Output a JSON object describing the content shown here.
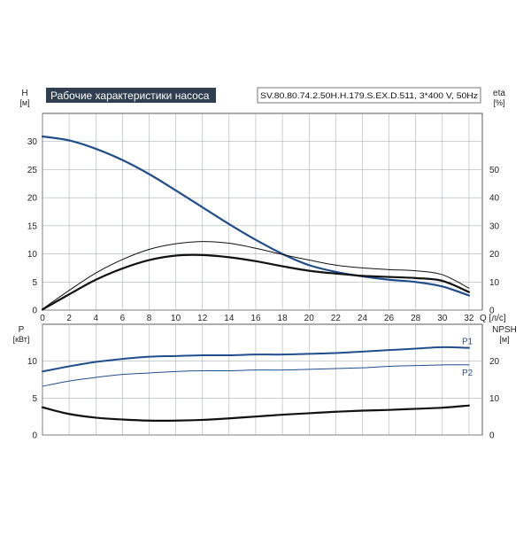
{
  "title": "Рабочие характеристики насоса",
  "model": "SV.80.80.74.2.50H.H.179.S.EX.D.511, 3*400 V, 50Hz",
  "colors": {
    "blue": "#1f4e8c",
    "black": "#111111",
    "grid": "#9aa0a6",
    "title_bg": "#2f3f50"
  },
  "chart_data": [
    {
      "type": "line",
      "x_label": "Q [л/с]",
      "y_label": "H [м]",
      "y2_label": "eta [%]",
      "xlim": [
        0,
        33
      ],
      "ylim": [
        0,
        35
      ],
      "y2lim": [
        0,
        70
      ],
      "x_ticks": [
        0,
        2,
        4,
        6,
        8,
        10,
        12,
        14,
        16,
        18,
        20,
        22,
        24,
        26,
        28,
        30,
        32
      ],
      "y_ticks": [
        0,
        5,
        10,
        15,
        20,
        25,
        30
      ],
      "y2_ticks": [
        0,
        10,
        20,
        30,
        40,
        50
      ],
      "grid": true,
      "series": [
        {
          "axis": "y",
          "color": "#1f4e8c",
          "width": 2.2,
          "x": [
            0,
            2,
            4,
            6,
            8,
            10,
            12,
            14,
            16,
            18,
            20,
            22,
            24,
            26,
            28,
            30,
            32
          ],
          "y": [
            30.9,
            30.2,
            28.7,
            26.7,
            24.2,
            21.3,
            18.3,
            15.3,
            12.5,
            10.0,
            8.0,
            6.8,
            6.0,
            5.4,
            5.0,
            4.2,
            2.6
          ]
        },
        {
          "axis": "y",
          "color": "#111111",
          "width": 1.0,
          "x": [
            0,
            2,
            4,
            6,
            8,
            10,
            12,
            14,
            16,
            18,
            20,
            22,
            24,
            26,
            28,
            30,
            32
          ],
          "y": [
            0.2,
            3.5,
            6.6,
            9.0,
            10.8,
            11.8,
            12.2,
            11.9,
            11.0,
            9.9,
            8.9,
            8.0,
            7.5,
            7.2,
            7.0,
            6.3,
            3.9
          ]
        },
        {
          "axis": "y",
          "color": "#111111",
          "width": 2.2,
          "x": [
            0,
            2,
            4,
            6,
            8,
            10,
            12,
            14,
            16,
            18,
            20,
            22,
            24,
            26,
            28,
            30,
            32
          ],
          "y": [
            0.1,
            2.8,
            5.4,
            7.4,
            8.9,
            9.7,
            9.8,
            9.4,
            8.7,
            7.8,
            7.0,
            6.5,
            6.1,
            5.9,
            5.7,
            5.2,
            3.2
          ]
        }
      ]
    },
    {
      "type": "line",
      "x_label": "",
      "y_label": "P [кВт]",
      "y2_label": "NPSH [м]",
      "xlim": [
        0,
        33
      ],
      "ylim": [
        0,
        15
      ],
      "y2lim": [
        0,
        30
      ],
      "y_ticks": [
        0,
        5,
        10
      ],
      "y2_ticks": [
        0,
        10,
        20
      ],
      "grid": true,
      "series": [
        {
          "name": "P1",
          "axis": "y",
          "color": "#1f4e8c",
          "width": 2.0,
          "x": [
            0,
            2,
            4,
            6,
            8,
            10,
            12,
            14,
            16,
            18,
            20,
            22,
            24,
            26,
            28,
            30,
            32
          ],
          "y": [
            8.6,
            9.3,
            9.9,
            10.3,
            10.6,
            10.7,
            10.8,
            10.8,
            10.9,
            10.9,
            11.0,
            11.1,
            11.3,
            11.5,
            11.7,
            11.9,
            11.8
          ]
        },
        {
          "name": "P2",
          "axis": "y",
          "color": "#1f4e8c",
          "width": 1.0,
          "x": [
            0,
            2,
            4,
            6,
            8,
            10,
            12,
            14,
            16,
            18,
            20,
            22,
            24,
            26,
            28,
            30,
            32
          ],
          "y": [
            6.6,
            7.3,
            7.8,
            8.2,
            8.4,
            8.6,
            8.7,
            8.7,
            8.8,
            8.8,
            8.9,
            9.0,
            9.1,
            9.3,
            9.4,
            9.5,
            9.5
          ]
        },
        {
          "name": "NPSH",
          "axis": "y2",
          "color": "#111111",
          "width": 2.2,
          "x": [
            0,
            2,
            4,
            6,
            8,
            10,
            12,
            14,
            16,
            18,
            20,
            22,
            24,
            26,
            28,
            30,
            32
          ],
          "y": [
            7.5,
            5.7,
            4.7,
            4.2,
            3.9,
            3.9,
            4.1,
            4.5,
            5.0,
            5.5,
            5.9,
            6.3,
            6.6,
            6.8,
            7.1,
            7.4,
            8.0
          ]
        }
      ]
    }
  ]
}
